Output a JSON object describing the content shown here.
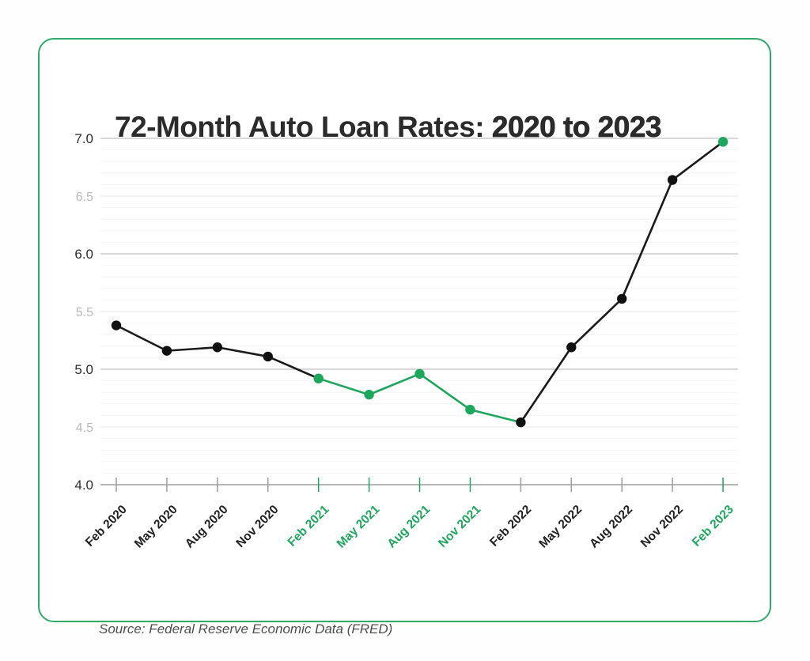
{
  "card": {
    "title_main": "72-Month Auto Loan Rates: ",
    "title_highlight": "2020 to 2023",
    "source": "Source: Federal Reserve Economic Data (FRED)"
  },
  "colors": {
    "green": "#1da75c",
    "border_green": "#2faa6b",
    "line_black": "#1a1a1a",
    "point_black": "#111111",
    "tick_gray": "#9e9e9e",
    "label_dark": "#222222"
  },
  "chart_data": {
    "type": "line",
    "title": "72-Month Auto Loan Rates: 2020 to 2023",
    "categories": [
      "Feb 2020",
      "May 2020",
      "Aug 2020",
      "Nov 2020",
      "Feb 2021",
      "May 2021",
      "Aug 2021",
      "Nov 2021",
      "Feb 2022",
      "May 2022",
      "Aug 2022",
      "Nov 2022",
      "Feb 2023"
    ],
    "values": [
      5.38,
      5.16,
      5.19,
      5.11,
      4.92,
      4.78,
      4.96,
      4.65,
      4.54,
      5.19,
      5.61,
      6.64,
      6.97
    ],
    "point_colors": [
      "black",
      "black",
      "black",
      "black",
      "green",
      "green",
      "green",
      "green",
      "black",
      "black",
      "black",
      "black",
      "green"
    ],
    "segment_colors": [
      "black",
      "black",
      "black",
      "black",
      "green",
      "green",
      "green",
      "green",
      "black",
      "black",
      "black",
      "black"
    ],
    "x_label_colors": [
      "black",
      "black",
      "black",
      "black",
      "green",
      "green",
      "green",
      "green",
      "black",
      "black",
      "black",
      "black",
      "green"
    ],
    "xlabel": "",
    "ylabel": "",
    "ylim": [
      4.0,
      7.0
    ],
    "yticks": [
      4.0,
      4.5,
      5.0,
      5.5,
      6.0,
      6.5,
      7.0
    ],
    "minor_grid_step": 0.1,
    "grid": "horizontal, minor + mid + major",
    "legend": "none",
    "source": "Federal Reserve Economic Data (FRED)"
  }
}
